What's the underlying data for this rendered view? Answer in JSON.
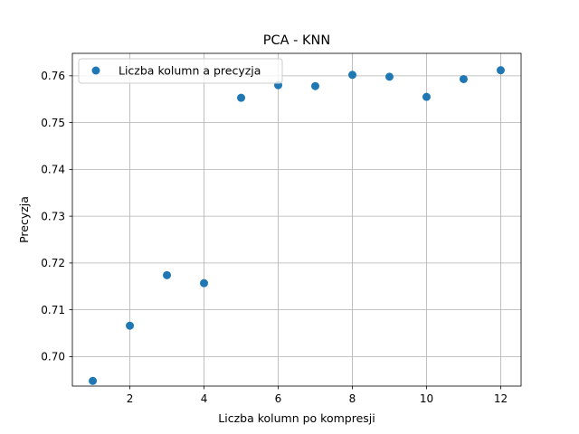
{
  "chart_data": {
    "type": "scatter",
    "title": "PCA - KNN",
    "xlabel": "Liczba kolumn po kompresji",
    "ylabel": "Precyzja",
    "xlim": [
      0.45,
      12.55
    ],
    "ylim": [
      0.6937,
      0.7648
    ],
    "xticks": [
      2,
      4,
      6,
      8,
      10,
      12
    ],
    "yticks": [
      0.7,
      0.71,
      0.72,
      0.73,
      0.74,
      0.75,
      0.76
    ],
    "xtick_labels": [
      "2",
      "4",
      "6",
      "8",
      "10",
      "12"
    ],
    "ytick_labels": [
      "0.70",
      "0.71",
      "0.72",
      "0.73",
      "0.74",
      "0.75",
      "0.76"
    ],
    "grid": true,
    "legend_position": "top-left",
    "color": "#1f77b4",
    "series": [
      {
        "name": "Liczba kolumn a precyzja",
        "x": [
          1,
          2,
          3,
          4,
          5,
          6,
          7,
          8,
          9,
          10,
          11,
          12
        ],
        "y": [
          0.6948,
          0.7066,
          0.7174,
          0.7157,
          0.7553,
          0.758,
          0.7578,
          0.7602,
          0.7598,
          0.7555,
          0.7593,
          0.7612
        ]
      }
    ]
  }
}
